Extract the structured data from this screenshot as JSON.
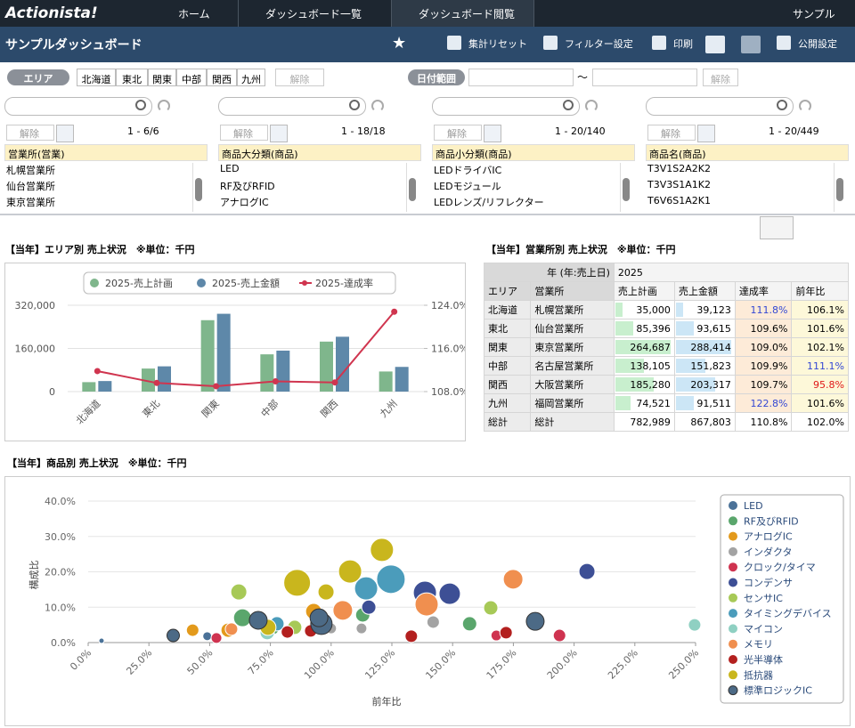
{
  "nav": {
    "logo": "Actionista!",
    "crumbs": [
      "ホーム",
      "ダッシュボード一覧",
      "ダッシュボード閲覧"
    ],
    "user": "サンプル"
  },
  "toolbar": {
    "title": "サンプルダッシュボード",
    "actions": [
      "集計リセット",
      "フィルター設定",
      "印刷",
      "公開設定"
    ]
  },
  "filters": {
    "area_label": "エリア",
    "areas": [
      "北海道",
      "東北",
      "関東",
      "中部",
      "関西",
      "九州"
    ],
    "clear": "解除",
    "date_label": "日付範囲",
    "tilde": "～"
  },
  "panels": [
    {
      "clear": "解除",
      "pager": "1 - 6/6",
      "field": "営業所(営業)",
      "items": [
        "札幌営業所",
        "仙台営業所",
        "東京営業所"
      ]
    },
    {
      "clear": "解除",
      "pager": "1 - 18/18",
      "field": "商品大分類(商品)",
      "items": [
        "LED",
        "RF及びRFID",
        "アナログIC"
      ]
    },
    {
      "clear": "解除",
      "pager": "1 - 20/140",
      "field": "商品小分類(商品)",
      "items": [
        "LEDドライバIC",
        "LEDモジュール",
        "LEDレンズ/リフレクター"
      ]
    },
    {
      "clear": "解除",
      "pager": "1 - 20/449",
      "field": "商品名(商品)",
      "items": [
        "T3V1S2A2K2",
        "T3V3S1A1K2",
        "T6V6S1A2K1"
      ]
    }
  ],
  "chart_data": [
    {
      "type": "combo",
      "title": "【当年】エリア別 売上状況　※単位：千円",
      "categories": [
        "北海道",
        "東北",
        "関東",
        "中部",
        "関西",
        "九州"
      ],
      "series": [
        {
          "name": "2025-売上計画",
          "color": "#7fb68c",
          "values": [
            35000,
            85396,
            264687,
            138105,
            185280,
            74521
          ]
        },
        {
          "name": "2025-売上金額",
          "color": "#5e88a9",
          "values": [
            39123,
            93615,
            288414,
            151823,
            203317,
            91511
          ]
        },
        {
          "name": "2025-達成率",
          "color": "#d0354f",
          "axis": "y2",
          "values": [
            111.8,
            109.6,
            109.0,
            109.9,
            109.7,
            122.8
          ]
        }
      ],
      "ylim": [
        0,
        320000
      ],
      "yticks": [
        {
          "value": 0,
          "label": "0"
        },
        {
          "value": 160000,
          "label": "160,000"
        },
        {
          "value": 320000,
          "label": "320,000"
        }
      ],
      "y2lim": [
        108,
        124
      ],
      "y2ticks": [
        {
          "value": 108,
          "label": "108.0%"
        },
        {
          "value": 116,
          "label": "116.0%"
        },
        {
          "value": 124,
          "label": "124.0%"
        }
      ],
      "grid": true,
      "legend": "top"
    },
    {
      "type": "bubble",
      "title": "【当年】商品別 売上状況　※単位：千円",
      "x_label": "前年比",
      "y_label": "構成比",
      "xlim": [
        0,
        250
      ],
      "ylim": [
        0,
        40
      ],
      "xticks": [
        {
          "value": 0,
          "label": "0.0%"
        },
        {
          "value": 25,
          "label": "25.0%"
        },
        {
          "value": 50,
          "label": "50.0%"
        },
        {
          "value": 75,
          "label": "75.0%"
        },
        {
          "value": 100,
          "label": "100.0%"
        },
        {
          "value": 125,
          "label": "125.0%"
        },
        {
          "value": 150,
          "label": "150.0%"
        },
        {
          "value": 175,
          "label": "175.0%"
        },
        {
          "value": 200,
          "label": "200.0%"
        },
        {
          "value": 225,
          "label": "225.0%"
        },
        {
          "value": 250,
          "label": "250.0%"
        }
      ],
      "yticks": [
        {
          "value": 0,
          "label": "0.0%"
        },
        {
          "value": 10,
          "label": "10.0%"
        },
        {
          "value": 20,
          "label": "20.0%"
        },
        {
          "value": 30,
          "label": "30.0%"
        },
        {
          "value": 40,
          "label": "40.0%"
        }
      ],
      "grid": true,
      "legend": "right",
      "series": [
        {
          "name": "LED",
          "color": "#4b7298",
          "x": [
            5.5,
            49
          ],
          "y": [
            0.5,
            1.8
          ],
          "size": [
            3,
            5
          ]
        },
        {
          "name": "RF及びRFID",
          "color": "#5aa66c",
          "x": [
            63.5,
            113,
            157,
            76
          ],
          "y": [
            7,
            7.8,
            5.3,
            4
          ],
          "size": [
            10,
            8,
            8,
            7
          ]
        },
        {
          "name": "アナログIC",
          "color": "#e39a1c",
          "x": [
            43,
            57.6,
            92.8
          ],
          "y": [
            3.5,
            3.5,
            8.8
          ],
          "size": [
            7,
            8,
            9
          ]
        },
        {
          "name": "インダクタ",
          "color": "#a3a3a3",
          "x": [
            142,
            100,
            112.5
          ],
          "y": [
            5.8,
            4,
            4
          ],
          "size": [
            7,
            6,
            6
          ]
        },
        {
          "name": "クロック/タイマ",
          "color": "#cf3350",
          "x": [
            52.8,
            168,
            194
          ],
          "y": [
            1.3,
            2,
            2
          ],
          "size": [
            6,
            6,
            7
          ]
        },
        {
          "name": "コンデンサ",
          "color": "#3d4f95",
          "x": [
            205.3,
            148.8,
            138.6,
            115.5
          ],
          "y": [
            20.1,
            13.8,
            14.1,
            10
          ],
          "size": [
            9,
            12,
            13,
            8
          ]
        },
        {
          "name": "センサIC",
          "color": "#a7c957",
          "x": [
            62,
            165.7,
            85
          ],
          "y": [
            14.3,
            9.8,
            4.3
          ],
          "size": [
            9,
            8,
            8
          ]
        },
        {
          "name": "タイミングデバイス",
          "color": "#4b9cbb",
          "x": [
            124.6,
            114.4,
            77.7
          ],
          "y": [
            17.9,
            15.3,
            5.3
          ],
          "size": [
            16,
            13,
            8
          ]
        },
        {
          "name": "マイコン",
          "color": "#8fd0c2",
          "x": [
            249.6,
            73.7
          ],
          "y": [
            5,
            2.8
          ],
          "size": [
            7,
            8
          ]
        },
        {
          "name": "メモリ",
          "color": "#f08f4f",
          "x": [
            174.9,
            104.8,
            139.3,
            59
          ],
          "y": [
            17.9,
            9.1,
            10.8,
            3.8
          ],
          "size": [
            11,
            11,
            13,
            7
          ]
        },
        {
          "name": "光半導体",
          "color": "#b3201f",
          "x": [
            133,
            172,
            82,
            91.6
          ],
          "y": [
            1.8,
            2.8,
            3,
            3.3
          ],
          "size": [
            7,
            7,
            7,
            7
          ]
        },
        {
          "name": "抵抗器",
          "color": "#c9b61d",
          "x": [
            120.9,
            86,
            107.8,
            97.9,
            74
          ],
          "y": [
            26.2,
            16.9,
            20.1,
            14.3,
            4.3
          ],
          "size": [
            13,
            15,
            13,
            9,
            9
          ]
        },
        {
          "name": "標準ロジックIC",
          "color": "#4c6a86",
          "x": [
            35,
            70,
            96,
            184,
            95
          ],
          "y": [
            2,
            6.3,
            5.3,
            6,
            7
          ],
          "size": [
            7,
            10,
            12,
            10,
            10
          ]
        }
      ]
    }
  ],
  "table": {
    "title": "【当年】営業所別 売上状況　※単位：千円",
    "year_header": "年 (年:売上日)",
    "year": "2025",
    "columns": [
      "エリア",
      "営業所",
      "売上計画",
      "売上金額",
      "達成率",
      "前年比"
    ],
    "rows": [
      [
        "北海道",
        "札幌営業所",
        "35,000",
        "39,123",
        "111.8%",
        "106.1%"
      ],
      [
        "東北",
        "仙台営業所",
        "85,396",
        "93,615",
        "109.6%",
        "101.6%"
      ],
      [
        "関東",
        "東京営業所",
        "264,687",
        "288,414",
        "109.0%",
        "102.1%"
      ],
      [
        "中部",
        "名古屋営業所",
        "138,105",
        "151,823",
        "109.9%",
        "111.1%"
      ],
      [
        "関西",
        "大阪営業所",
        "185,280",
        "203,317",
        "109.7%",
        "95.8%"
      ],
      [
        "九州",
        "福岡営業所",
        "74,521",
        "91,511",
        "122.8%",
        "101.6%"
      ]
    ],
    "total": [
      "総計",
      "総計",
      "782,989",
      "867,803",
      "110.8%",
      "102.0%"
    ],
    "bar_colors": [
      "#c8efce",
      "#cce6f6"
    ],
    "emphasis": [
      {
        "row": 0,
        "col": 4,
        "color": "#3347d4"
      },
      {
        "row": 5,
        "col": 4,
        "color": "#3347d4"
      },
      {
        "row": 3,
        "col": 5,
        "color": "#3347d4"
      },
      {
        "row": 4,
        "col": 5,
        "color": "#e01818"
      }
    ]
  }
}
